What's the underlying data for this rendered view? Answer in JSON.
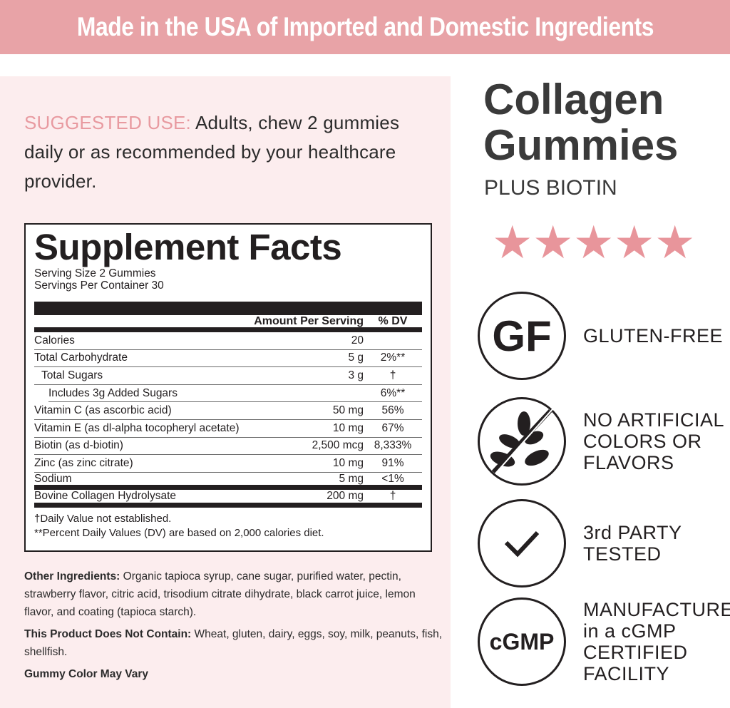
{
  "banner": "Made in the USA of Imported and Domestic Ingredients",
  "suggested": {
    "label": "SUGGESTED USE:",
    "text": " Adults, chew 2 gummies daily or as recommended by your healthcare provider."
  },
  "facts": {
    "title": "Supplement Facts",
    "serving_size": "Serving Size 2 Gummies",
    "servings": "Servings Per Container 30",
    "col_amount": "Amount Per Serving",
    "col_dv": "% DV",
    "rows": [
      {
        "name": "Calories",
        "amount": "20",
        "dv": ""
      },
      {
        "name": "Total Carbohydrate",
        "amount": "5 g",
        "dv": "2%**"
      },
      {
        "name": "Total Sugars",
        "amount": "3 g",
        "dv": "†"
      },
      {
        "name": "Includes 3g Added Sugars",
        "amount": "",
        "dv": "6%**"
      },
      {
        "name": "Vitamin C (as ascorbic acid)",
        "amount": "50 mg",
        "dv": "56%"
      },
      {
        "name": "Vitamin E (as dl-alpha tocopheryl acetate)",
        "amount": "10 mg",
        "dv": "67%"
      },
      {
        "name": "Biotin (as d-biotin)",
        "amount": "2,500 mcg",
        "dv": "8,333%"
      },
      {
        "name": "Zinc (as zinc citrate)",
        "amount": "10 mg",
        "dv": "91%"
      },
      {
        "name": "Sodium",
        "amount": "5 mg",
        "dv": "<1%"
      },
      {
        "name": "Bovine Collagen Hydrolysate",
        "amount": "200 mg",
        "dv": "†"
      }
    ],
    "foot1": "†Daily Value not established.",
    "foot2": "**Percent Daily Values (DV) are based on 2,000 calories diet."
  },
  "ingredients": {
    "other_label": "Other Ingredients:",
    "other": " Organic tapioca syrup, cane sugar, purified water, pectin, strawberry flavor, citric acid, trisodium citrate dihydrate, black carrot juice, lemon flavor, and coating (tapioca starch).",
    "not_label": "This Product Does Not Contain:",
    "not": " Wheat, gluten, dairy, eggs, soy, milk, peanuts, fish, shellfish.",
    "color_note": "Gummy Color May Vary"
  },
  "product": {
    "title": "Collagen Gummies",
    "subtitle": "PLUS BIOTIN",
    "rating": 5,
    "star_color": "#e8959b"
  },
  "features": [
    {
      "icon": "gf-icon",
      "icon_text": "GF",
      "label": "GLUTEN-FREE"
    },
    {
      "icon": "no-artificial-leaf-icon",
      "label": "NO ARTIFICIAL\nCOLORS OR\nFLAVORS"
    },
    {
      "icon": "checkmark-icon",
      "label": "3rd PARTY\nTESTED"
    },
    {
      "icon": "cgmp-icon",
      "icon_text": "cGMP",
      "label": "MANUFACTURED\nin a cGMP\nCERTIFIED\nFACILITY"
    }
  ],
  "colors": {
    "banner": "#e8a3a7",
    "panel": "#fcedee",
    "accent": "#e89aa0"
  }
}
